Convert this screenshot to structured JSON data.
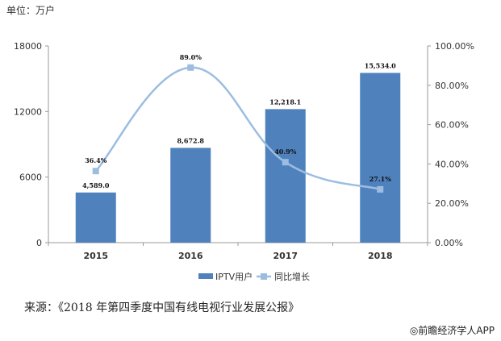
{
  "header": {
    "unit": "单位：万户"
  },
  "footer": {
    "source": "来源：《2018 年第四季度中国有线电视行业发展公报》",
    "watermark": "◎前瞻经济学人APP"
  },
  "colors": {
    "bar": "#4f81bd",
    "line": "#9dbde0",
    "marker": "#9dbde0",
    "axis": "#9a9a9a"
  },
  "chart_data": {
    "type": "bar",
    "categories": [
      "2015",
      "2016",
      "2017",
      "2018"
    ],
    "series": [
      {
        "name": "IPTV用户",
        "type": "bar",
        "axis": "left",
        "values": [
          4589.0,
          8672.8,
          12218.1,
          15534.0
        ],
        "labels": [
          "4,589.0",
          "8,672.8",
          "12,218.1",
          "15,534.0"
        ]
      },
      {
        "name": "同比增长",
        "type": "line",
        "axis": "right",
        "values": [
          36.4,
          89.0,
          40.9,
          27.1
        ],
        "labels": [
          "36.4%",
          "89.0%",
          "40.9%",
          "27.1%"
        ]
      }
    ],
    "y_left": {
      "ylim": [
        0,
        18000
      ],
      "ticks": [
        "0",
        "6000",
        "12000",
        "18000"
      ],
      "tick_values": [
        0,
        6000,
        12000,
        18000
      ]
    },
    "y_right": {
      "ylim": [
        0,
        100
      ],
      "ticks": [
        "0.00%",
        "20.00%",
        "40.00%",
        "60.00%",
        "80.00%",
        "100.00%"
      ],
      "tick_values": [
        0,
        20,
        40,
        60,
        80,
        100
      ]
    },
    "grid": false,
    "legend": "bottom-center"
  }
}
